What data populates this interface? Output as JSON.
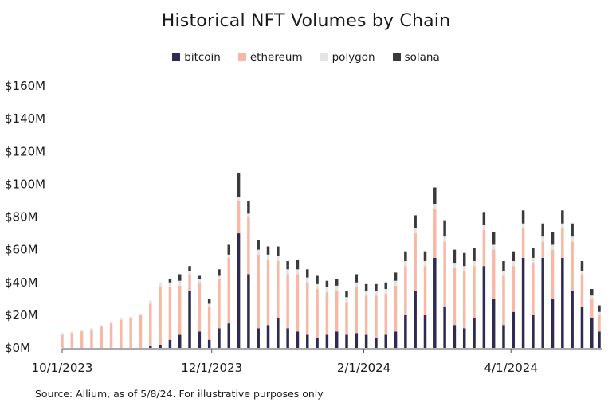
{
  "chart_data": {
    "type": "bar",
    "stacked": true,
    "title": "Historical NFT Volumes by Chain",
    "xlabel": "",
    "ylabel": "",
    "ylim": [
      0,
      160
    ],
    "y_ticks": [
      "$0M",
      "$20M",
      "$40M",
      "$60M",
      "$80M",
      "$100M",
      "$120M",
      "$140M",
      "$160M"
    ],
    "x_ticks": [
      "10/1/2023",
      "12/1/2023",
      "2/1/2024",
      "4/1/2024"
    ],
    "x_range": [
      "2023-10-01",
      "2024-05-07"
    ],
    "legend_position": "top-center",
    "grid": false,
    "series": [
      {
        "name": "bitcoin",
        "color": "#2e2a52"
      },
      {
        "name": "ethereum",
        "color": "#f7b9a5"
      },
      {
        "name": "polygon",
        "color": "#e4e4e4"
      },
      {
        "name": "solana",
        "color": "#3a3a3a"
      }
    ],
    "x": [
      "2023-10-01",
      "2023-10-05",
      "2023-10-09",
      "2023-10-13",
      "2023-10-17",
      "2023-10-21",
      "2023-10-25",
      "2023-10-29",
      "2023-11-02",
      "2023-11-06",
      "2023-11-10",
      "2023-11-14",
      "2023-11-18",
      "2023-11-22",
      "2023-11-26",
      "2023-11-30",
      "2023-12-04",
      "2023-12-08",
      "2023-12-12",
      "2023-12-16",
      "2023-12-20",
      "2023-12-24",
      "2023-12-28",
      "2024-01-01",
      "2024-01-05",
      "2024-01-09",
      "2024-01-13",
      "2024-01-17",
      "2024-01-21",
      "2024-01-25",
      "2024-01-29",
      "2024-02-02",
      "2024-02-06",
      "2024-02-10",
      "2024-02-14",
      "2024-02-18",
      "2024-02-22",
      "2024-02-26",
      "2024-03-01",
      "2024-03-05",
      "2024-03-09",
      "2024-03-13",
      "2024-03-17",
      "2024-03-21",
      "2024-03-25",
      "2024-03-29",
      "2024-04-02",
      "2024-04-06",
      "2024-04-10",
      "2024-04-14",
      "2024-04-18",
      "2024-04-22",
      "2024-04-26",
      "2024-04-30",
      "2024-05-04",
      "2024-05-07"
    ],
    "values": {
      "bitcoin": [
        0,
        0,
        0,
        0,
        0,
        0,
        0,
        0,
        0,
        1,
        2,
        5,
        8,
        35,
        10,
        5,
        12,
        15,
        70,
        45,
        12,
        14,
        18,
        12,
        10,
        8,
        6,
        8,
        10,
        8,
        9,
        8,
        6,
        8,
        10,
        20,
        35,
        20,
        55,
        25,
        14,
        12,
        18,
        50,
        30,
        14,
        22,
        55,
        20,
        55,
        30,
        55,
        35,
        25,
        18,
        10
      ],
      "ethereum": [
        8,
        9,
        10,
        11,
        13,
        15,
        17,
        18,
        20,
        26,
        35,
        32,
        30,
        10,
        30,
        20,
        30,
        40,
        20,
        35,
        45,
        40,
        35,
        33,
        35,
        32,
        30,
        26,
        25,
        20,
        28,
        24,
        26,
        25,
        28,
        30,
        35,
        30,
        30,
        40,
        35,
        35,
        32,
        22,
        30,
        30,
        28,
        18,
        32,
        10,
        30,
        18,
        30,
        20,
        12,
        10
      ],
      "polygon": [
        1,
        1,
        1,
        1,
        1,
        1,
        1,
        1,
        1,
        2,
        3,
        3,
        3,
        2,
        2,
        2,
        2,
        2,
        2,
        2,
        3,
        3,
        3,
        3,
        3,
        3,
        3,
        3,
        3,
        3,
        3,
        3,
        3,
        3,
        3,
        3,
        3,
        3,
        3,
        3,
        3,
        3,
        3,
        3,
        3,
        3,
        3,
        3,
        3,
        3,
        3,
        3,
        3,
        2,
        2,
        2
      ],
      "solana": [
        0,
        0,
        0,
        0,
        0,
        0,
        0,
        0,
        0,
        0,
        0,
        2,
        4,
        3,
        2,
        3,
        4,
        6,
        15,
        8,
        6,
        5,
        6,
        5,
        6,
        5,
        5,
        4,
        4,
        4,
        5,
        4,
        4,
        4,
        5,
        6,
        8,
        6,
        10,
        10,
        8,
        8,
        8,
        8,
        8,
        6,
        6,
        8,
        6,
        8,
        8,
        8,
        8,
        6,
        4,
        4
      ]
    }
  },
  "source_note": "Source: Allium, as of 5/8/24. For illustrative purposes only"
}
